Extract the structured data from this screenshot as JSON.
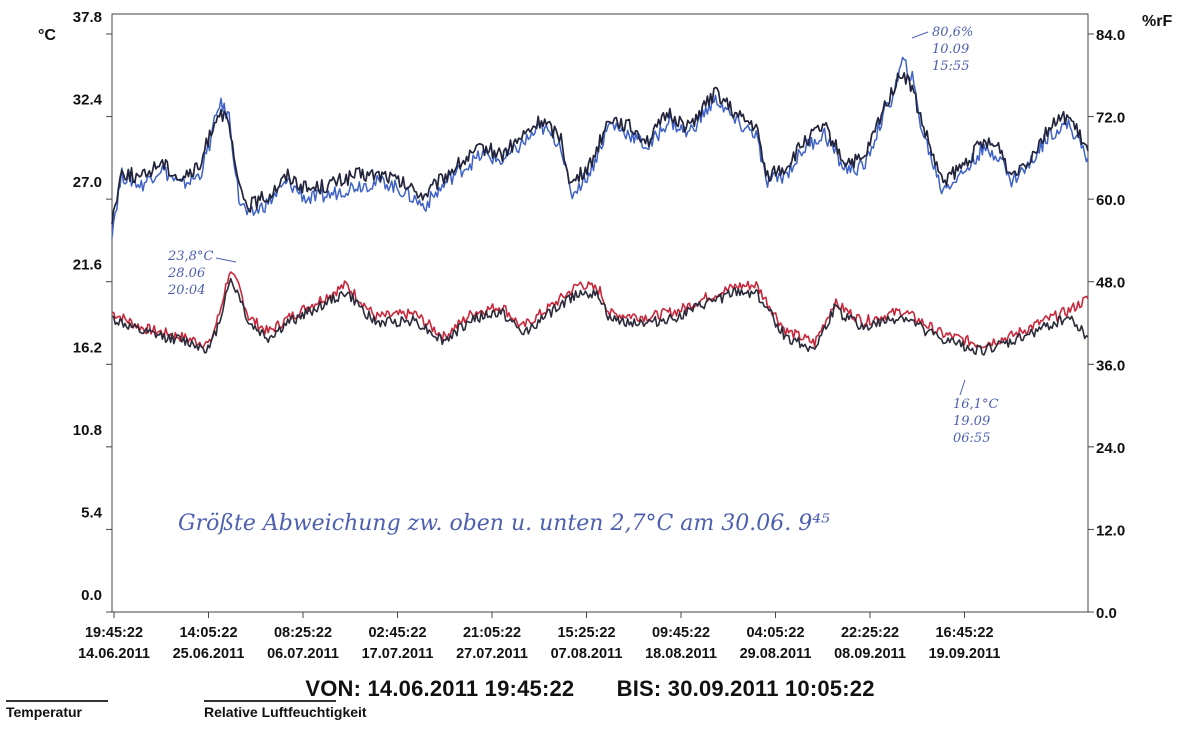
{
  "chart_data": {
    "type": "line",
    "y_left": {
      "unit": "°C",
      "ticks": [
        "37.8",
        "32.4",
        "27.0",
        "21.6",
        "16.2",
        "10.8",
        "5.4",
        "0.0"
      ],
      "range": [
        0,
        37.8
      ]
    },
    "y_right": {
      "unit": "%rF",
      "ticks": [
        "84.0",
        "72.0",
        "60.0",
        "48.0",
        "36.0",
        "24.0",
        "12.0",
        "0.0"
      ],
      "range": [
        0,
        84.0
      ]
    },
    "x_ticks": [
      {
        "time": "19:45:22",
        "date": "14.06.2011"
      },
      {
        "time": "14:05:22",
        "date": "25.06.2011"
      },
      {
        "time": "08:25:22",
        "date": "06.07.2011"
      },
      {
        "time": "02:45:22",
        "date": "17.07.2011"
      },
      {
        "time": "21:05:22",
        "date": "27.07.2011"
      },
      {
        "time": "15:25:22",
        "date": "07.08.2011"
      },
      {
        "time": "09:45:22",
        "date": "18.08.2011"
      },
      {
        "time": "04:05:22",
        "date": "29.08.2011"
      },
      {
        "time": "22:25:22",
        "date": "08.09.2011"
      },
      {
        "time": "16:45:22",
        "date": "19.09.2011"
      }
    ],
    "x_range": [
      "14.06.2011",
      "30.09.2011"
    ],
    "grid": false,
    "series": [
      {
        "name": "Temperatur",
        "axis": "left",
        "traces": [
          {
            "color": "#c9283c",
            "width": 1.6,
            "points": [
              [
                0,
                19.6
              ],
              [
                3,
                18.6
              ],
              [
                7,
                18.0
              ],
              [
                10,
                17.5
              ],
              [
                11,
                19.5
              ],
              [
                12,
                22.2
              ],
              [
                13,
                21.3
              ],
              [
                14,
                19.3
              ],
              [
                16,
                18.3
              ],
              [
                18,
                19.2
              ],
              [
                21,
                20.3
              ],
              [
                24,
                21.4
              ],
              [
                27,
                19.3
              ],
              [
                31,
                19.5
              ],
              [
                34,
                18.0
              ],
              [
                37,
                19.6
              ],
              [
                40,
                20.0
              ],
              [
                42,
                18.6
              ],
              [
                45,
                20.0
              ],
              [
                48,
                21.5
              ],
              [
                50,
                21.0
              ],
              [
                51,
                19.5
              ],
              [
                55,
                19.3
              ],
              [
                58,
                19.7
              ],
              [
                61,
                20.6
              ],
              [
                64,
                21.3
              ],
              [
                66,
                21.4
              ],
              [
                69,
                18.4
              ],
              [
                72,
                17.6
              ],
              [
                74,
                20.2
              ],
              [
                77,
                19.0
              ],
              [
                81,
                19.7
              ],
              [
                85,
                18.2
              ],
              [
                89,
                17.5
              ],
              [
                92,
                18.0
              ],
              [
                95,
                18.9
              ],
              [
                98,
                19.7
              ],
              [
                100,
                20.5
              ]
            ]
          },
          {
            "color": "#2b2b3a",
            "width": 1.6,
            "points": [
              [
                0,
                19.2
              ],
              [
                3,
                18.3
              ],
              [
                7,
                17.8
              ],
              [
                10,
                17.2
              ],
              [
                11,
                19.0
              ],
              [
                12,
                21.7
              ],
              [
                13,
                20.8
              ],
              [
                14,
                18.9
              ],
              [
                16,
                17.9
              ],
              [
                18,
                18.9
              ],
              [
                21,
                19.9
              ],
              [
                24,
                20.9
              ],
              [
                27,
                18.9
              ],
              [
                31,
                19.1
              ],
              [
                34,
                17.7
              ],
              [
                37,
                19.2
              ],
              [
                40,
                19.6
              ],
              [
                42,
                18.2
              ],
              [
                45,
                19.6
              ],
              [
                48,
                21.0
              ],
              [
                50,
                20.6
              ],
              [
                51,
                19.1
              ],
              [
                55,
                18.9
              ],
              [
                58,
                19.3
              ],
              [
                61,
                20.2
              ],
              [
                64,
                20.9
              ],
              [
                66,
                20.9
              ],
              [
                69,
                18.0
              ],
              [
                72,
                17.2
              ],
              [
                74,
                19.8
              ],
              [
                77,
                18.6
              ],
              [
                81,
                19.3
              ],
              [
                85,
                17.8
              ],
              [
                89,
                17.1
              ],
              [
                92,
                17.6
              ],
              [
                95,
                18.5
              ],
              [
                98,
                19.3
              ],
              [
                100,
                18.0
              ]
            ]
          }
        ]
      },
      {
        "name": "Relative Luftfeuchtigkeit",
        "axis": "right",
        "traces": [
          {
            "color": "#3f62c8",
            "width": 1.5,
            "points": [
              [
                0,
                55.5
              ],
              [
                1,
                63.5
              ],
              [
                3,
                62.0
              ],
              [
                5,
                64.5
              ],
              [
                7,
                62.0
              ],
              [
                9,
                63.5
              ],
              [
                10,
                68.0
              ],
              [
                11,
                74.0
              ],
              [
                12,
                72.0
              ],
              [
                13,
                60.0
              ],
              [
                14,
                57.5
              ],
              [
                16,
                59.5
              ],
              [
                18,
                62.5
              ],
              [
                20,
                60.0
              ],
              [
                22,
                60.5
              ],
              [
                25,
                62.0
              ],
              [
                28,
                62.5
              ],
              [
                30,
                61.0
              ],
              [
                32,
                59.0
              ],
              [
                35,
                63.5
              ],
              [
                38,
                66.5
              ],
              [
                40,
                65.5
              ],
              [
                42,
                68.0
              ],
              [
                44,
                70.5
              ],
              [
                46,
                68.0
              ],
              [
                47,
                60.5
              ],
              [
                49,
                64.0
              ],
              [
                51,
                71.0
              ],
              [
                53,
                69.5
              ],
              [
                55,
                67.5
              ],
              [
                57,
                71.5
              ],
              [
                59,
                69.5
              ],
              [
                61,
                73.0
              ],
              [
                62,
                74.5
              ],
              [
                64,
                71.0
              ],
              [
                66,
                69.5
              ],
              [
                67,
                62.5
              ],
              [
                69,
                63.5
              ],
              [
                71,
                67.5
              ],
              [
                73,
                69.5
              ],
              [
                75,
                64.5
              ],
              [
                77,
                64.5
              ],
              [
                79,
                72.0
              ],
              [
                80,
                75.0
              ],
              [
                81,
                80.0
              ],
              [
                82,
                77.5
              ],
              [
                83,
                70.0
              ],
              [
                85,
                61.5
              ],
              [
                87,
                63.5
              ],
              [
                89,
                67.0
              ],
              [
                91,
                66.5
              ],
              [
                92,
                62.5
              ],
              [
                94,
                65.0
              ],
              [
                96,
                69.5
              ],
              [
                98,
                71.0
              ],
              [
                100,
                66.0
              ]
            ]
          },
          {
            "color": "#22243c",
            "width": 1.7,
            "points": [
              [
                0,
                57.0
              ],
              [
                1,
                64.0
              ],
              [
                3,
                63.0
              ],
              [
                5,
                65.5
              ],
              [
                7,
                63.0
              ],
              [
                9,
                64.5
              ],
              [
                10,
                69.5
              ],
              [
                11,
                73.0
              ],
              [
                12,
                70.5
              ],
              [
                13,
                61.5
              ],
              [
                14,
                59.0
              ],
              [
                16,
                60.5
              ],
              [
                18,
                63.5
              ],
              [
                20,
                61.5
              ],
              [
                22,
                62.0
              ],
              [
                25,
                63.5
              ],
              [
                28,
                63.5
              ],
              [
                30,
                62.0
              ],
              [
                32,
                60.5
              ],
              [
                35,
                64.5
              ],
              [
                38,
                67.5
              ],
              [
                40,
                66.5
              ],
              [
                42,
                69.0
              ],
              [
                44,
                71.5
              ],
              [
                46,
                69.0
              ],
              [
                47,
                62.0
              ],
              [
                49,
                65.0
              ],
              [
                51,
                72.0
              ],
              [
                53,
                70.5
              ],
              [
                55,
                68.5
              ],
              [
                57,
                72.5
              ],
              [
                59,
                70.5
              ],
              [
                61,
                74.0
              ],
              [
                62,
                75.5
              ],
              [
                64,
                72.0
              ],
              [
                66,
                70.5
              ],
              [
                67,
                63.5
              ],
              [
                69,
                64.5
              ],
              [
                71,
                68.5
              ],
              [
                73,
                70.5
              ],
              [
                75,
                65.5
              ],
              [
                77,
                65.5
              ],
              [
                79,
                73.0
              ],
              [
                80,
                76.0
              ],
              [
                81,
                78.5
              ],
              [
                82,
                76.0
              ],
              [
                83,
                71.0
              ],
              [
                85,
                62.5
              ],
              [
                87,
                64.5
              ],
              [
                89,
                68.0
              ],
              [
                91,
                67.5
              ],
              [
                92,
                63.5
              ],
              [
                94,
                66.0
              ],
              [
                96,
                70.5
              ],
              [
                98,
                72.0
              ],
              [
                100,
                67.0
              ]
            ]
          }
        ]
      }
    ],
    "annotations": {
      "hum_max": [
        "80,6%",
        "10.09",
        "15:55"
      ],
      "temp_max": [
        "23,8°C",
        "28.06",
        "20:04"
      ],
      "temp_min": [
        "16,1°C",
        "19.09",
        "06:55"
      ],
      "note": "Größte Abweichung zw. oben u. unten 2,7°C am 30.06. 9⁴⁵"
    }
  },
  "footer": {
    "von": "VON: 14.06.2011 19:45:22",
    "bis": "BIS: 30.09.2011 10:05:22"
  },
  "legend": {
    "temperature": "Temperatur",
    "humidity": "Relative Luftfeuchtigkeit"
  }
}
